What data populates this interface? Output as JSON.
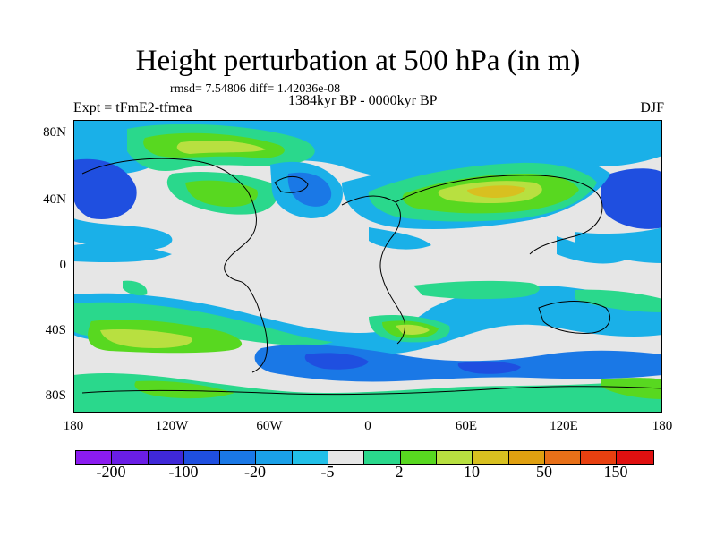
{
  "title": "Height perturbation at 500 hPa (in m)",
  "stats": "rmsd= 7.54806 diff= 1.42036e-08",
  "experiment": "Expt = tFmE2-tfmea",
  "period": "1384kyr BP - 0000kyr BP",
  "season": "DJF",
  "map": {
    "latitude_labels": [
      "80N",
      "40N",
      "0",
      "40S",
      "80S"
    ],
    "longitude_labels": [
      "180",
      "120W",
      "60W",
      "0",
      "60E",
      "120E",
      "180"
    ]
  },
  "colorbar": {
    "colors": [
      "#8b1cf0",
      "#6a1ee6",
      "#3f28d8",
      "#1f4fe0",
      "#1a78e6",
      "#1aa0e8",
      "#22c0e8",
      "#e6e6e6",
      "#2ad88c",
      "#58d820",
      "#b8e040",
      "#d8c020",
      "#e0a010",
      "#e87018",
      "#e84010",
      "#e01010"
    ],
    "labels": [
      "-200",
      "-100",
      "-20",
      "-5",
      "2",
      "10",
      "50",
      "150"
    ]
  },
  "colors": {
    "neutral": "#e6e6e6",
    "cyan": "#1ab0e8",
    "blue": "#1a78e6",
    "dark_blue": "#1f4fe0",
    "teal": "#2ad88c",
    "green": "#58d820",
    "yellow_green": "#b8e040",
    "orange": "#d8c020"
  }
}
